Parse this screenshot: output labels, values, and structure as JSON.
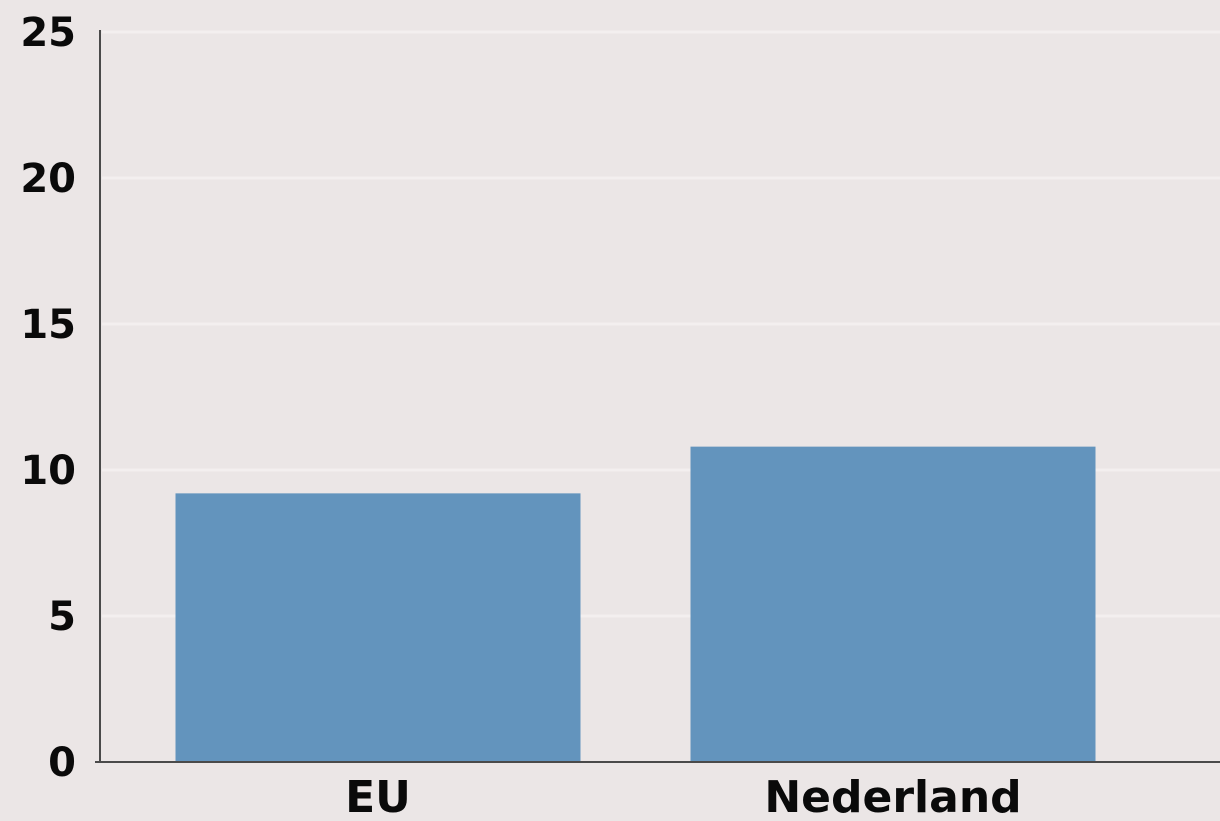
{
  "chart_data": {
    "type": "bar",
    "categories": [
      "EU",
      "Nederland"
    ],
    "values": [
      9.2,
      10.8
    ],
    "title": "",
    "xlabel": "",
    "ylabel": "",
    "ylim": [
      0,
      25
    ],
    "yticks": [
      0,
      5,
      10,
      15,
      20,
      25
    ],
    "ytick_labels": [
      "0",
      "5",
      "10",
      "15",
      "20",
      "25"
    ],
    "grid": true,
    "bar_color": "#6394bd",
    "background_color": "#ebe6e6"
  }
}
